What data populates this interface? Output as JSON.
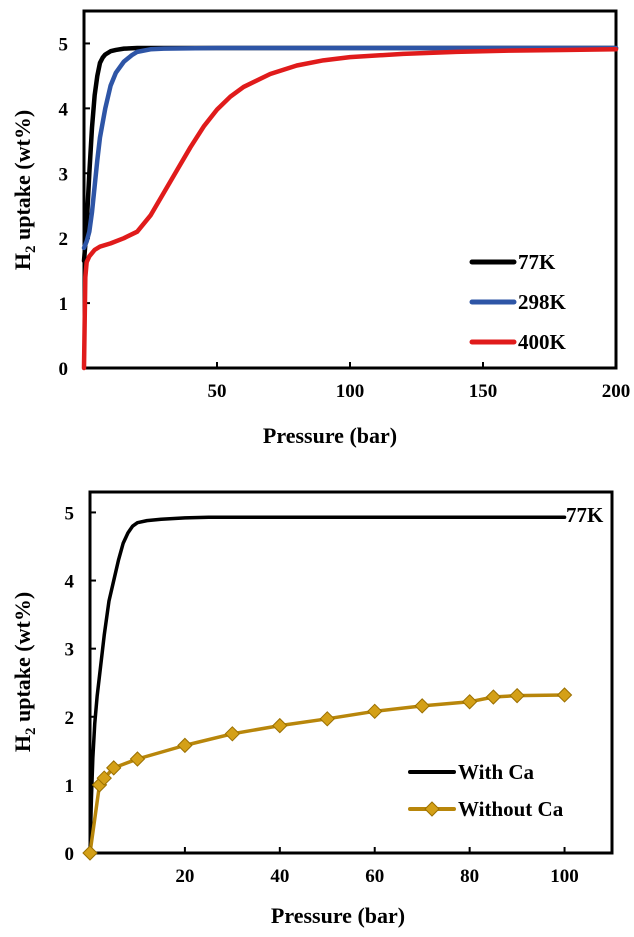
{
  "chart_data": [
    {
      "type": "line",
      "title": "",
      "xlabel": "Pressure (bar)",
      "ylabel_main": "H",
      "ylabel_sub": "2",
      "ylabel_rest": " uptake (wt%)",
      "xlim": [
        0,
        200
      ],
      "ylim": [
        0,
        5.5
      ],
      "xticks": [
        50,
        100,
        150,
        200
      ],
      "yticks": [
        0,
        1,
        2,
        3,
        4,
        5
      ],
      "grid": false,
      "legend_position": "bottom-right",
      "series": [
        {
          "name": "77K",
          "color": "#000000",
          "x": [
            0,
            0.5,
            1,
            2,
            3,
            4,
            5,
            6,
            7,
            8,
            10,
            12,
            15,
            20,
            25,
            50,
            100,
            150,
            200
          ],
          "y": [
            1.65,
            1.9,
            2.2,
            3.0,
            3.7,
            4.2,
            4.5,
            4.7,
            4.78,
            4.83,
            4.88,
            4.9,
            4.92,
            4.93,
            4.93,
            4.93,
            4.93,
            4.93,
            4.93
          ]
        },
        {
          "name": "298K",
          "color": "#2e55a6",
          "x": [
            0,
            1,
            2,
            3,
            4,
            5,
            6,
            8,
            10,
            12,
            15,
            18,
            20,
            25,
            30,
            50,
            100,
            150,
            200
          ],
          "y": [
            1.85,
            1.95,
            2.1,
            2.4,
            2.8,
            3.2,
            3.55,
            4.0,
            4.35,
            4.55,
            4.72,
            4.82,
            4.87,
            4.91,
            4.92,
            4.93,
            4.93,
            4.93,
            4.93
          ]
        },
        {
          "name": "400K",
          "color": "#e01b1b",
          "x": [
            0,
            0.5,
            1,
            2,
            4,
            6,
            10,
            15,
            20,
            25,
            30,
            35,
            40,
            45,
            50,
            55,
            60,
            70,
            80,
            90,
            100,
            120,
            140,
            160,
            180,
            200
          ],
          "y": [
            0,
            1.4,
            1.63,
            1.72,
            1.82,
            1.87,
            1.92,
            2.0,
            2.1,
            2.35,
            2.7,
            3.05,
            3.4,
            3.72,
            3.98,
            4.18,
            4.33,
            4.53,
            4.66,
            4.74,
            4.79,
            4.84,
            4.87,
            4.89,
            4.9,
            4.91
          ]
        }
      ]
    },
    {
      "type": "line",
      "title": "",
      "annotation": "77K",
      "xlabel": "Pressure (bar)",
      "ylabel_main": "H",
      "ylabel_sub": "2",
      "ylabel_rest": " uptake (wt%)",
      "xlim": [
        0,
        110
      ],
      "ylim": [
        0,
        5.3
      ],
      "xticks": [
        20,
        40,
        60,
        80,
        100
      ],
      "yticks": [
        0,
        1,
        2,
        3,
        4,
        5
      ],
      "grid": false,
      "legend_position": "bottom-right",
      "series": [
        {
          "name": "With Ca",
          "color": "#000000",
          "markers": false,
          "x": [
            0,
            0.3,
            0.6,
            1,
            1.5,
            2,
            3,
            4,
            5,
            6,
            7,
            8,
            9,
            10,
            12,
            15,
            20,
            25,
            30,
            50,
            100
          ],
          "y": [
            0,
            0.8,
            1.4,
            1.9,
            2.3,
            2.6,
            3.2,
            3.7,
            4.0,
            4.3,
            4.55,
            4.7,
            4.8,
            4.85,
            4.88,
            4.9,
            4.92,
            4.93,
            4.93,
            4.93,
            4.93
          ]
        },
        {
          "name": "Without Ca",
          "color": "#b8860b",
          "markers": true,
          "x": [
            0,
            2,
            3,
            5,
            10,
            20,
            30,
            40,
            50,
            60,
            70,
            80,
            85,
            90,
            100
          ],
          "y": [
            0,
            1.0,
            1.1,
            1.25,
            1.38,
            1.58,
            1.75,
            1.87,
            1.97,
            2.08,
            2.16,
            2.22,
            2.29,
            2.31,
            2.32
          ]
        }
      ]
    }
  ]
}
